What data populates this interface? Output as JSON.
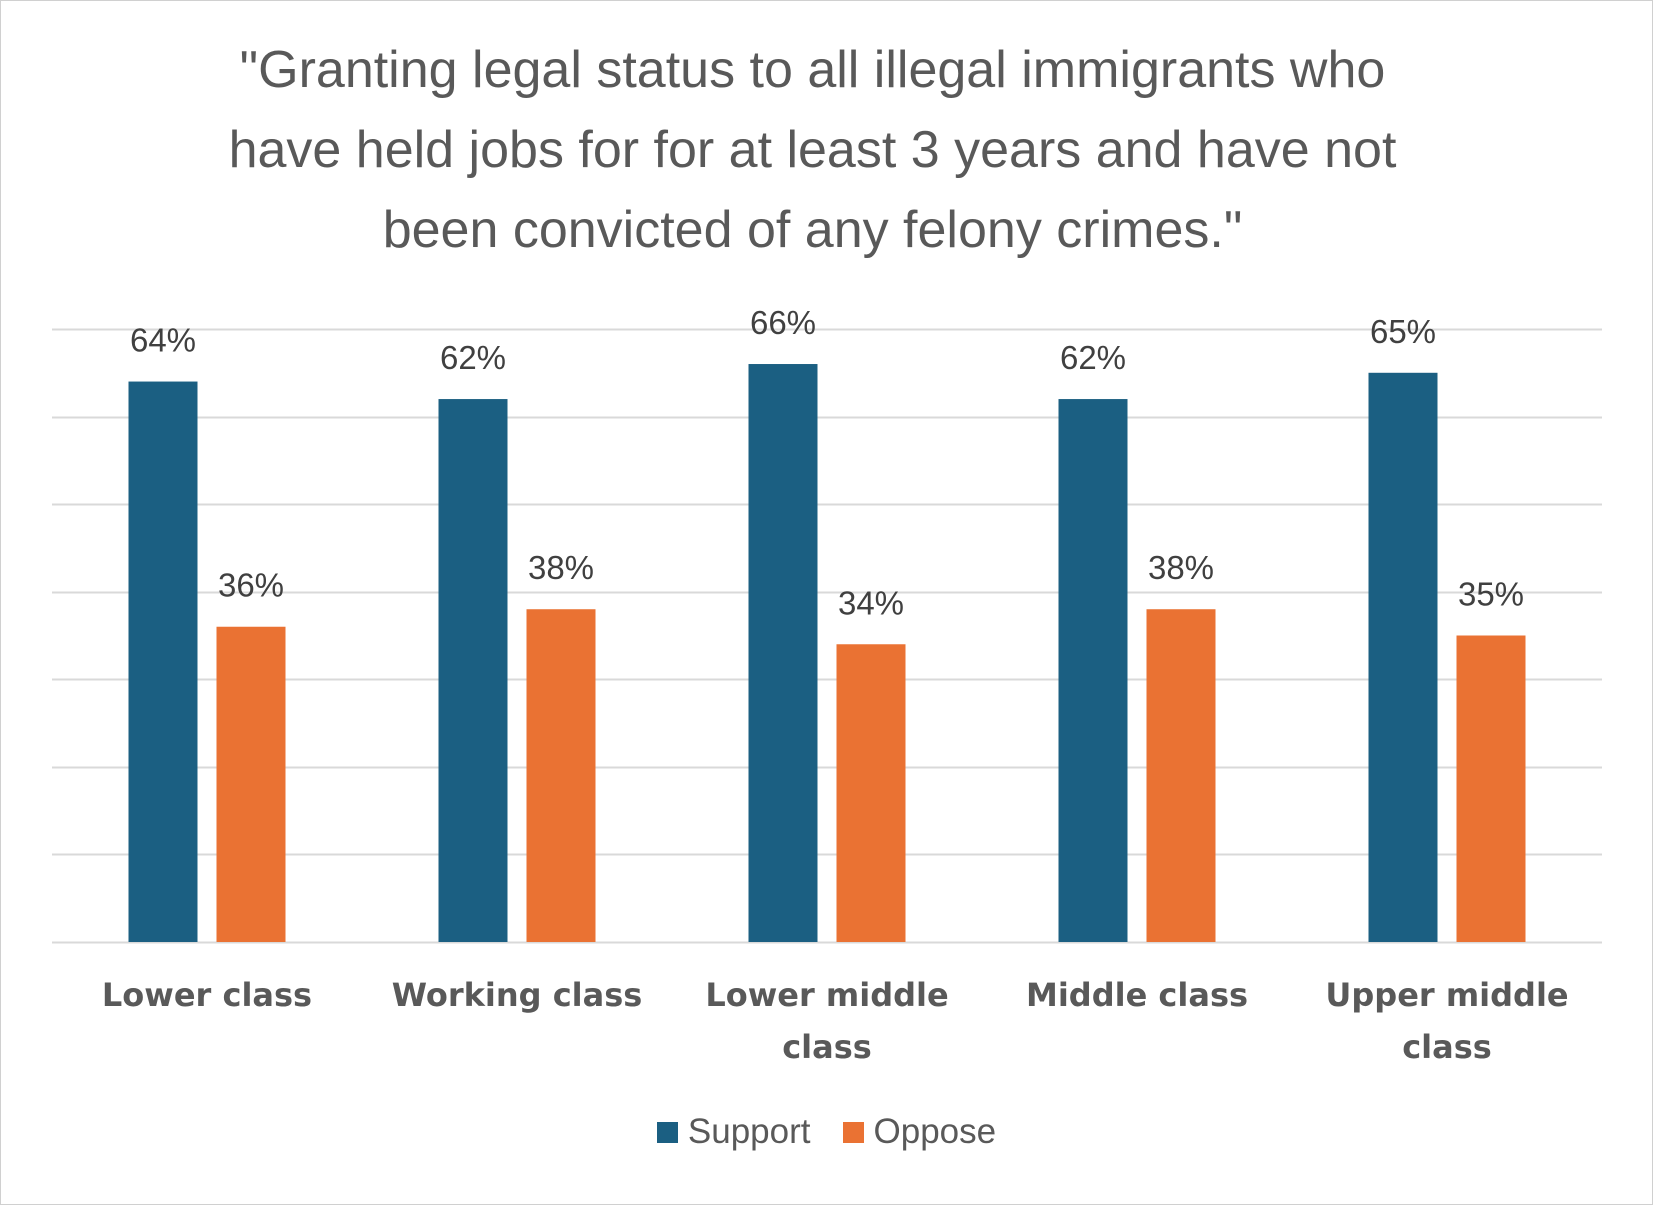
{
  "chart_data": {
    "type": "bar",
    "title_lines": [
      "\"Granting legal status to all illegal immigrants who",
      "have held jobs for for at least 3 years and have not",
      "been convicted of any felony crimes.\""
    ],
    "categories": [
      [
        "Lower class"
      ],
      [
        "Working class"
      ],
      [
        "Lower middle",
        "class"
      ],
      [
        "Middle class"
      ],
      [
        "Upper middle",
        "class"
      ]
    ],
    "series": [
      {
        "name": "Support",
        "color": "#1b5f82",
        "values": [
          64,
          62,
          66,
          62,
          65
        ],
        "labels": [
          "64%",
          "62%",
          "66%",
          "62%",
          "65%"
        ]
      },
      {
        "name": "Oppose",
        "color": "#ea7233",
        "values": [
          36,
          38,
          34,
          38,
          35
        ],
        "labels": [
          "36%",
          "38%",
          "34%",
          "38%",
          "35%"
        ]
      }
    ],
    "ylim": [
      0,
      70
    ],
    "y_gridlines": [
      0,
      10,
      20,
      30,
      40,
      50,
      60,
      70
    ],
    "grid": true,
    "legend_position": "bottom",
    "gridline_color": "#d9d9d9"
  }
}
